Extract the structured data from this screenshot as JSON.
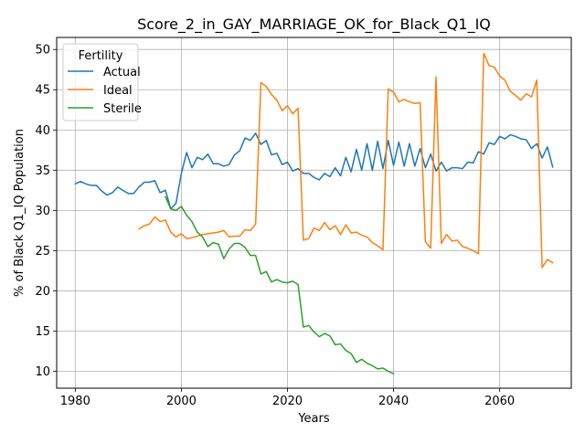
{
  "chart_data": {
    "type": "line",
    "title": "Score_2_in_GAY_MARRIAGE_OK_for_Black_Q1_IQ",
    "xlabel": "Years",
    "ylabel": "% of Black Q1_IQ Population",
    "xlim": [
      1976.5,
      2073.5
    ],
    "ylim": [
      7.9,
      51.5
    ],
    "xticks": [
      1980,
      2000,
      2020,
      2040,
      2060
    ],
    "yticks": [
      10,
      15,
      20,
      25,
      30,
      35,
      40,
      45,
      50
    ],
    "grid": true,
    "legend": {
      "title": "Fertility",
      "position": "top-left",
      "entries": [
        "Actual",
        "Ideal",
        "Sterile"
      ]
    },
    "colors": {
      "Actual": "#1f77b4",
      "Ideal": "#ff7f0e",
      "Sterile": "#2ca02c"
    },
    "series": [
      {
        "name": "Actual",
        "x": [
          1980,
          1981,
          1982,
          1983,
          1984,
          1985,
          1986,
          1987,
          1988,
          1989,
          1990,
          1991,
          1992,
          1993,
          1994,
          1995,
          1996,
          1997,
          1998,
          1999,
          2000,
          2001,
          2002,
          2003,
          2004,
          2005,
          2006,
          2007,
          2008,
          2009,
          2010,
          2011,
          2012,
          2013,
          2014,
          2015,
          2016,
          2017,
          2018,
          2019,
          2020,
          2021,
          2022,
          2023,
          2024,
          2025,
          2026,
          2027,
          2028,
          2029,
          2030,
          2031,
          2032,
          2033,
          2034,
          2035,
          2036,
          2037,
          2038,
          2039,
          2040,
          2041,
          2042,
          2043,
          2044,
          2045,
          2046,
          2047,
          2048,
          2049,
          2050,
          2051,
          2052,
          2053,
          2054,
          2055,
          2056,
          2057,
          2058,
          2059,
          2060,
          2061,
          2062,
          2063,
          2064,
          2065,
          2066,
          2067,
          2068,
          2069,
          2070
        ],
        "y": [
          33.3,
          33.6,
          33.3,
          33.1,
          33.1,
          32.4,
          31.9,
          32.2,
          32.9,
          32.5,
          32.1,
          32.1,
          32.9,
          33.5,
          33.5,
          33.7,
          32.2,
          32.5,
          30.2,
          30.9,
          34.6,
          37.2,
          35.3,
          36.6,
          36.3,
          37.0,
          35.8,
          35.8,
          35.5,
          35.7,
          36.9,
          37.4,
          39.0,
          38.7,
          39.6,
          38.2,
          38.7,
          36.9,
          37.1,
          35.7,
          36.0,
          34.9,
          35.2,
          34.6,
          34.6,
          34.1,
          33.8,
          34.6,
          34.2,
          35.3,
          34.3,
          36.6,
          34.8,
          37.6,
          35.0,
          38.3,
          35.0,
          38.6,
          35.2,
          38.7,
          35.6,
          38.5,
          35.5,
          38.3,
          35.5,
          37.7,
          35.3,
          37.0,
          34.9,
          36.0,
          34.9,
          35.3,
          35.3,
          35.2,
          36.0,
          35.9,
          37.3,
          37.0,
          38.4,
          38.2,
          39.2,
          38.9,
          39.4,
          39.2,
          38.9,
          38.8,
          37.7,
          38.3,
          36.5,
          37.9,
          35.4
        ]
      },
      {
        "name": "Ideal",
        "x": [
          1992,
          1993,
          1994,
          1995,
          1996,
          1997,
          1998,
          1999,
          2000,
          2001,
          2002,
          2003,
          2004,
          2005,
          2006,
          2007,
          2008,
          2009,
          2010,
          2011,
          2012,
          2013,
          2014,
          2015,
          2016,
          2017,
          2018,
          2019,
          2020,
          2021,
          2022,
          2023,
          2024,
          2025,
          2026,
          2027,
          2028,
          2029,
          2030,
          2031,
          2032,
          2033,
          2034,
          2035,
          2036,
          2037,
          2038,
          2039,
          2040,
          2041,
          2042,
          2043,
          2044,
          2045,
          2046,
          2047,
          2048,
          2049,
          2050,
          2051,
          2052,
          2053,
          2054,
          2055,
          2056,
          2057,
          2058,
          2059,
          2060,
          2061,
          2062,
          2063,
          2064,
          2065,
          2066,
          2067,
          2068,
          2069,
          2070
        ],
        "y": [
          27.7,
          28.1,
          28.3,
          29.2,
          28.6,
          28.8,
          27.3,
          26.7,
          27.1,
          26.5,
          26.6,
          26.8,
          27.0,
          27.1,
          27.2,
          27.3,
          27.5,
          26.7,
          26.8,
          26.8,
          27.6,
          27.5,
          28.3,
          45.9,
          45.4,
          44.4,
          43.7,
          42.4,
          43.0,
          42.0,
          42.7,
          26.3,
          26.5,
          27.8,
          27.5,
          28.5,
          27.6,
          28.1,
          27.0,
          28.2,
          27.2,
          27.3,
          26.9,
          26.7,
          26.0,
          25.6,
          25.1,
          45.1,
          44.7,
          43.5,
          43.8,
          43.5,
          43.3,
          43.4,
          26.1,
          25.3,
          46.6,
          25.9,
          27.0,
          26.2,
          26.3,
          25.5,
          25.3,
          25.0,
          24.6,
          49.5,
          48.0,
          47.8,
          46.7,
          46.2,
          44.8,
          44.3,
          43.7,
          44.5,
          44.1,
          46.2,
          22.9,
          23.9,
          23.5
        ]
      },
      {
        "name": "Sterile",
        "x": [
          1997,
          1998,
          1999,
          2000,
          2001,
          2002,
          2003,
          2004,
          2005,
          2006,
          2007,
          2008,
          2009,
          2010,
          2011,
          2012,
          2013,
          2014,
          2015,
          2016,
          2017,
          2018,
          2019,
          2020,
          2021,
          2022,
          2023,
          2024,
          2025,
          2026,
          2027,
          2028,
          2029,
          2030,
          2031,
          2032,
          2033,
          2034,
          2035,
          2036,
          2037,
          2038,
          2039,
          2040
        ],
        "y": [
          31.7,
          30.2,
          30.0,
          30.5,
          29.4,
          28.6,
          27.3,
          26.7,
          25.5,
          26.0,
          25.8,
          24.0,
          25.2,
          25.9,
          25.9,
          25.4,
          24.4,
          24.4,
          22.1,
          22.4,
          21.1,
          21.4,
          21.1,
          21.0,
          21.2,
          20.8,
          15.5,
          15.7,
          14.9,
          14.3,
          14.7,
          14.4,
          13.3,
          13.4,
          12.6,
          12.2,
          11.1,
          11.5,
          11.0,
          10.7,
          10.3,
          10.4,
          10.0,
          9.7
        ]
      }
    ]
  }
}
